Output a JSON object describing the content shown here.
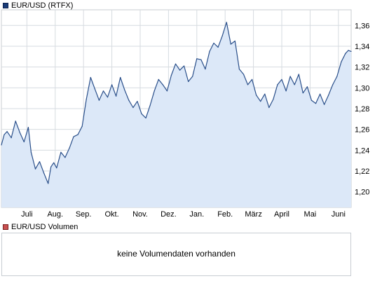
{
  "legend": {
    "main_label": "EUR/USD (RTFX)",
    "volume_label": "EUR/USD Volumen"
  },
  "volume_panel": {
    "message": "keine Volumendaten vorhanden"
  },
  "colors": {
    "series_line": "#2a4f8a",
    "series_fill": "#dce8f8",
    "main_swatch": "#1a3c78",
    "volume_swatch": "#c85050",
    "grid": "#d6dbe0",
    "panel_border": "#c8cdd2"
  },
  "chart_data": {
    "type": "area",
    "title": "",
    "xlabel": "",
    "ylabel": "",
    "grid": true,
    "y_axis_side": "right",
    "ylim": [
      1.185,
      1.375
    ],
    "y_ticks": [
      "1,20",
      "1,22",
      "1,24",
      "1,26",
      "1,28",
      "1,30",
      "1,32",
      "1,34",
      "1,36"
    ],
    "y_tick_values": [
      1.2,
      1.22,
      1.24,
      1.26,
      1.28,
      1.3,
      1.32,
      1.34,
      1.36
    ],
    "x_ticks": [
      "Juli",
      "Aug.",
      "Sep.",
      "Okt.",
      "Nov.",
      "Dez.",
      "Jan.",
      "Feb.",
      "März",
      "April",
      "Mai",
      "Juni"
    ],
    "x_tick_positions": [
      1.0,
      2.0,
      3.0,
      4.0,
      5.0,
      6.0,
      7.0,
      8.0,
      9.0,
      10.0,
      11.0,
      12.0
    ],
    "xlim": [
      0.1,
      12.45
    ],
    "series": [
      {
        "name": "EUR/USD (RTFX)",
        "x": [
          0.1,
          0.2,
          0.3,
          0.45,
          0.6,
          0.75,
          0.9,
          1.05,
          1.15,
          1.3,
          1.45,
          1.6,
          1.75,
          1.85,
          1.95,
          2.05,
          2.2,
          2.35,
          2.5,
          2.65,
          2.8,
          2.95,
          3.1,
          3.25,
          3.4,
          3.55,
          3.7,
          3.85,
          4.0,
          4.15,
          4.3,
          4.45,
          4.6,
          4.75,
          4.9,
          5.05,
          5.2,
          5.35,
          5.5,
          5.65,
          5.8,
          5.95,
          6.1,
          6.25,
          6.4,
          6.55,
          6.7,
          6.85,
          7.0,
          7.15,
          7.3,
          7.45,
          7.6,
          7.75,
          7.9,
          8.05,
          8.2,
          8.35,
          8.5,
          8.65,
          8.8,
          8.95,
          9.1,
          9.25,
          9.4,
          9.55,
          9.7,
          9.85,
          10.0,
          10.15,
          10.3,
          10.45,
          10.6,
          10.75,
          10.9,
          11.05,
          11.2,
          11.35,
          11.5,
          11.65,
          11.8,
          11.95,
          12.1,
          12.25,
          12.35,
          12.45
        ],
        "values": [
          1.245,
          1.255,
          1.258,
          1.252,
          1.268,
          1.257,
          1.248,
          1.262,
          1.238,
          1.222,
          1.229,
          1.218,
          1.208,
          1.224,
          1.228,
          1.223,
          1.238,
          1.233,
          1.242,
          1.253,
          1.255,
          1.263,
          1.289,
          1.31,
          1.299,
          1.288,
          1.297,
          1.291,
          1.303,
          1.292,
          1.31,
          1.298,
          1.288,
          1.281,
          1.287,
          1.275,
          1.271,
          1.283,
          1.297,
          1.308,
          1.303,
          1.297,
          1.312,
          1.323,
          1.317,
          1.321,
          1.306,
          1.311,
          1.328,
          1.327,
          1.318,
          1.335,
          1.343,
          1.339,
          1.35,
          1.363,
          1.342,
          1.345,
          1.318,
          1.313,
          1.303,
          1.308,
          1.293,
          1.287,
          1.294,
          1.281,
          1.289,
          1.303,
          1.308,
          1.297,
          1.311,
          1.303,
          1.313,
          1.295,
          1.301,
          1.288,
          1.285,
          1.294,
          1.284,
          1.293,
          1.303,
          1.311,
          1.325,
          1.333,
          1.336,
          1.335
        ]
      }
    ]
  }
}
